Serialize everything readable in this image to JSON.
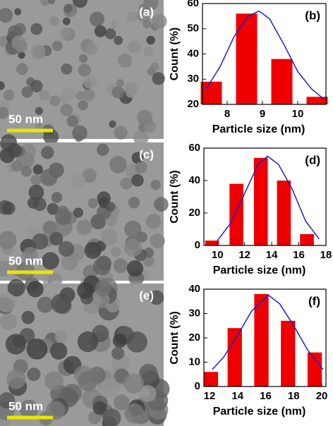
{
  "images": [
    {
      "label": "(a)",
      "scale_bar": "50 nm"
    },
    {
      "label": "(c)",
      "scale_bar": "50 nm"
    },
    {
      "label": "(e)",
      "scale_bar": "50 nm"
    }
  ],
  "chart_data": [
    {
      "type": "bar",
      "annotation": "(b)",
      "x_label": "Particle size (nm)",
      "y_label": "Count (%)",
      "x": [
        7.55,
        8.55,
        9.55,
        10.55
      ],
      "values": [
        29,
        56,
        38,
        23
      ],
      "color": "#ee0000",
      "xlim": [
        7.3,
        10.8
      ],
      "xticks": [
        8,
        9,
        10
      ],
      "ylim": [
        20,
        60
      ],
      "yticks": [
        20,
        30,
        40,
        50,
        60
      ],
      "fit": {
        "color": "#2020c0",
        "x": [
          7.4,
          7.8,
          8.2,
          8.6,
          8.9,
          9.2,
          9.6,
          10.0,
          10.4,
          10.75
        ],
        "values": [
          26,
          35,
          47,
          55,
          57,
          54,
          44,
          33,
          26,
          22
        ]
      }
    },
    {
      "type": "bar",
      "annotation": "(d)",
      "x_label": "Particle size (nm)",
      "y_label": "Count (%)",
      "x": [
        9.6,
        11.4,
        13.2,
        14.9,
        16.6
      ],
      "values": [
        3,
        38,
        54,
        40,
        7
      ],
      "color": "#ee0000",
      "xlim": [
        9,
        18
      ],
      "xticks": [
        10,
        12,
        14,
        16,
        18
      ],
      "ylim": [
        0,
        60
      ],
      "yticks": [
        0,
        20,
        40,
        60
      ],
      "fit": {
        "color": "#2020c0",
        "x": [
          10,
          11,
          12,
          13,
          13.7,
          14.5,
          15.5,
          16.5,
          17.5
        ],
        "values": [
          3,
          14,
          32,
          50,
          55,
          50,
          35,
          15,
          4
        ]
      }
    },
    {
      "type": "bar",
      "annotation": "(f)",
      "x_label": "Particle size (nm)",
      "y_label": "Count (%)",
      "x": [
        12.1,
        13.8,
        15.7,
        17.6,
        19.5
      ],
      "values": [
        6,
        24,
        38,
        27,
        14
      ],
      "color": "#ee0000",
      "xlim": [
        11.6,
        20.3
      ],
      "xticks": [
        12,
        14,
        16,
        18,
        20
      ],
      "ylim": [
        0,
        40
      ],
      "yticks": [
        0,
        10,
        20,
        30,
        40
      ],
      "fit": {
        "color": "#2020c0",
        "x": [
          12.2,
          13,
          14,
          15,
          16.2,
          17,
          18,
          19,
          20.1
        ],
        "values": [
          7,
          12,
          21,
          31,
          37.5,
          34,
          25,
          15,
          7
        ]
      }
    }
  ]
}
